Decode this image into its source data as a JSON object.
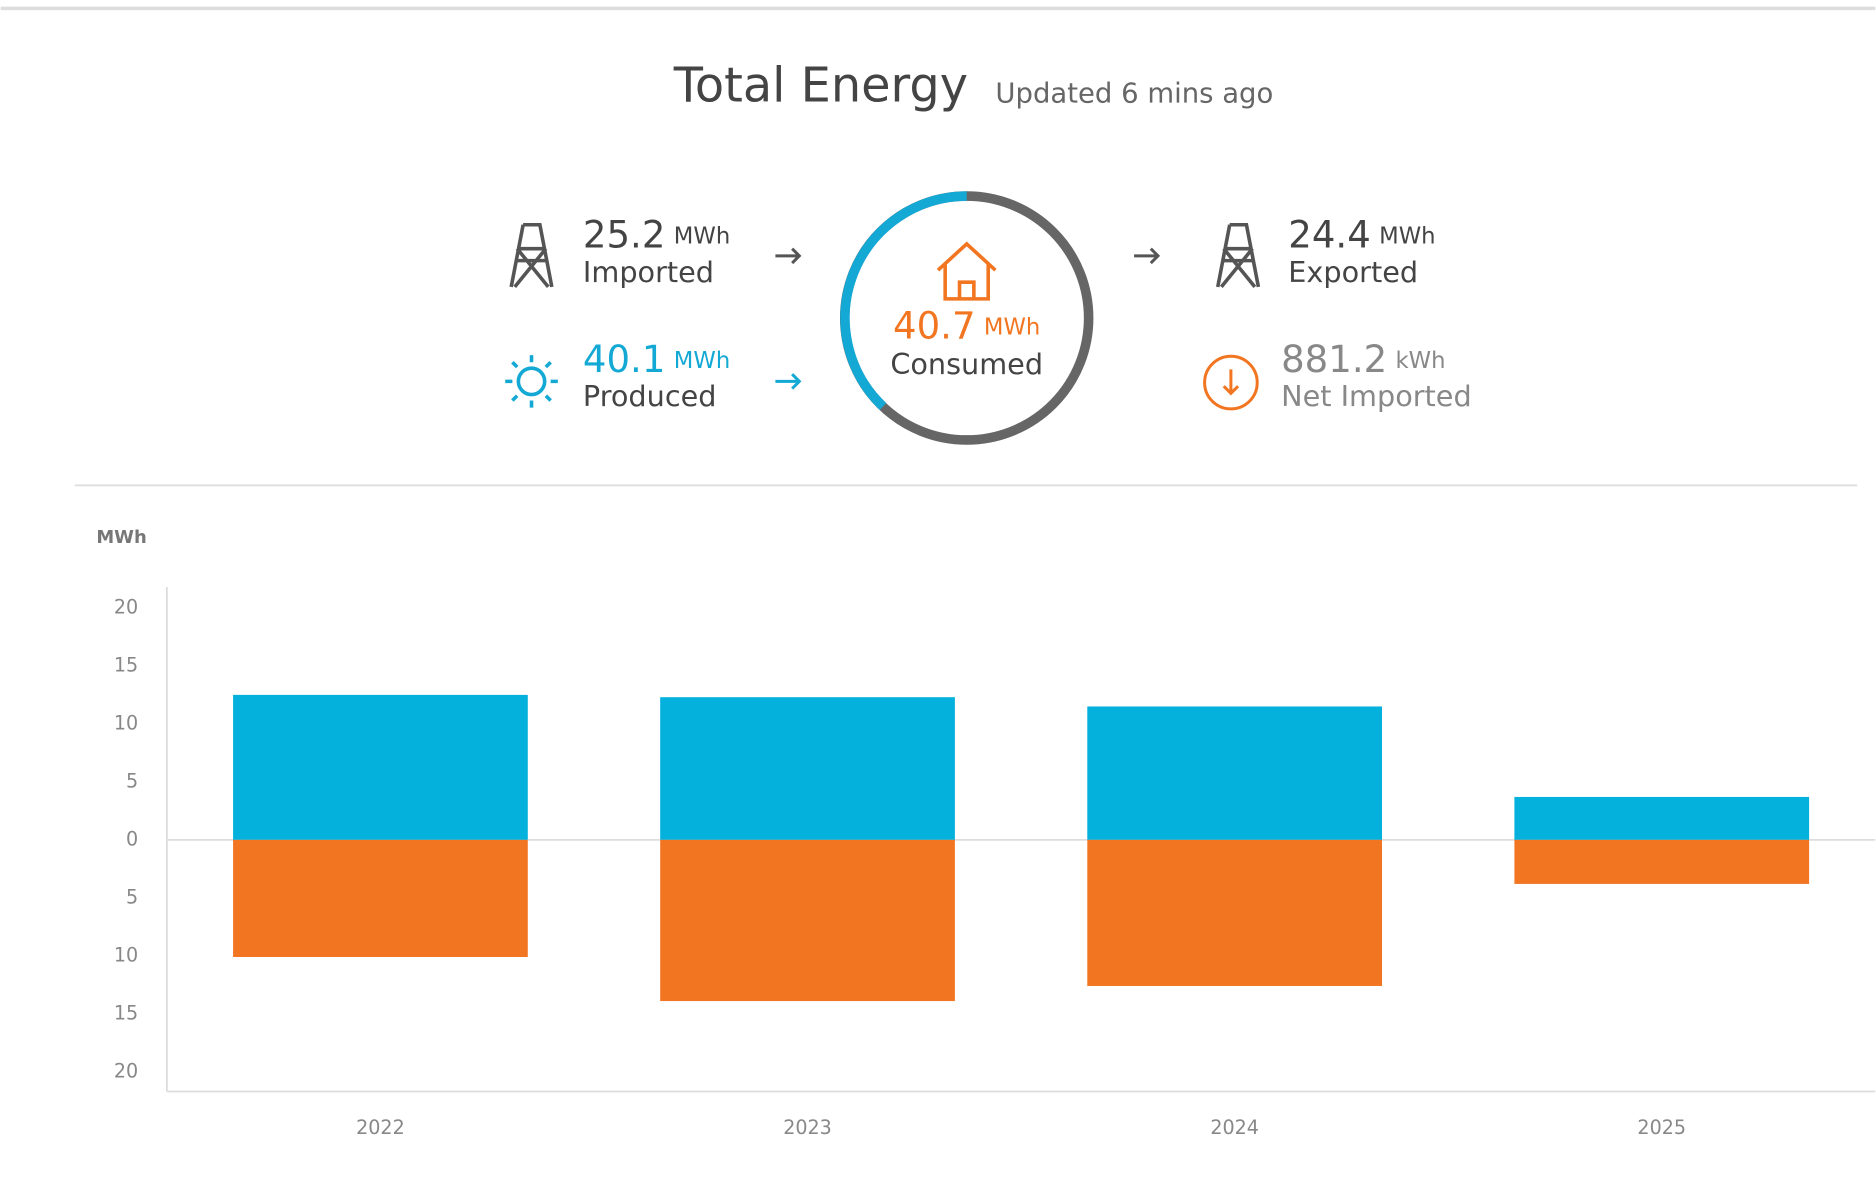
{
  "header": {
    "title": "Total Energy",
    "updated": "Updated 6 mins ago"
  },
  "summary": {
    "imported": {
      "value": 25.2,
      "unit": "MWh",
      "label": "Imported"
    },
    "produced": {
      "value": 40.1,
      "unit": "MWh",
      "label": "Produced"
    },
    "consumed": {
      "value": 40.7,
      "unit": "MWh",
      "label": "Consumed"
    },
    "exported": {
      "value": 24.4,
      "unit": "MWh",
      "label": "Exported"
    },
    "net_imported": {
      "value": 881.2,
      "unit": "kWh",
      "label": "Net Imported"
    }
  },
  "chart_data": {
    "type": "bar",
    "ylabel": "MWh",
    "categories": [
      "2022",
      "2023",
      "2024",
      "2025"
    ],
    "series": [
      {
        "color": "#04b1dc",
        "values": [
          12.5,
          12.3,
          11.5,
          3.7
        ]
      },
      {
        "color": "#f27621",
        "values": [
          -10.1,
          -13.9,
          -12.6,
          -3.8
        ]
      }
    ],
    "ylim": [
      -21.7,
      21.8
    ],
    "yticks": [
      {
        "value": -20,
        "label": "20"
      },
      {
        "value": -15,
        "label": "15"
      },
      {
        "value": -10,
        "label": "10"
      },
      {
        "value": -5,
        "label": "5"
      },
      0,
      5,
      10,
      15,
      20
    ]
  }
}
